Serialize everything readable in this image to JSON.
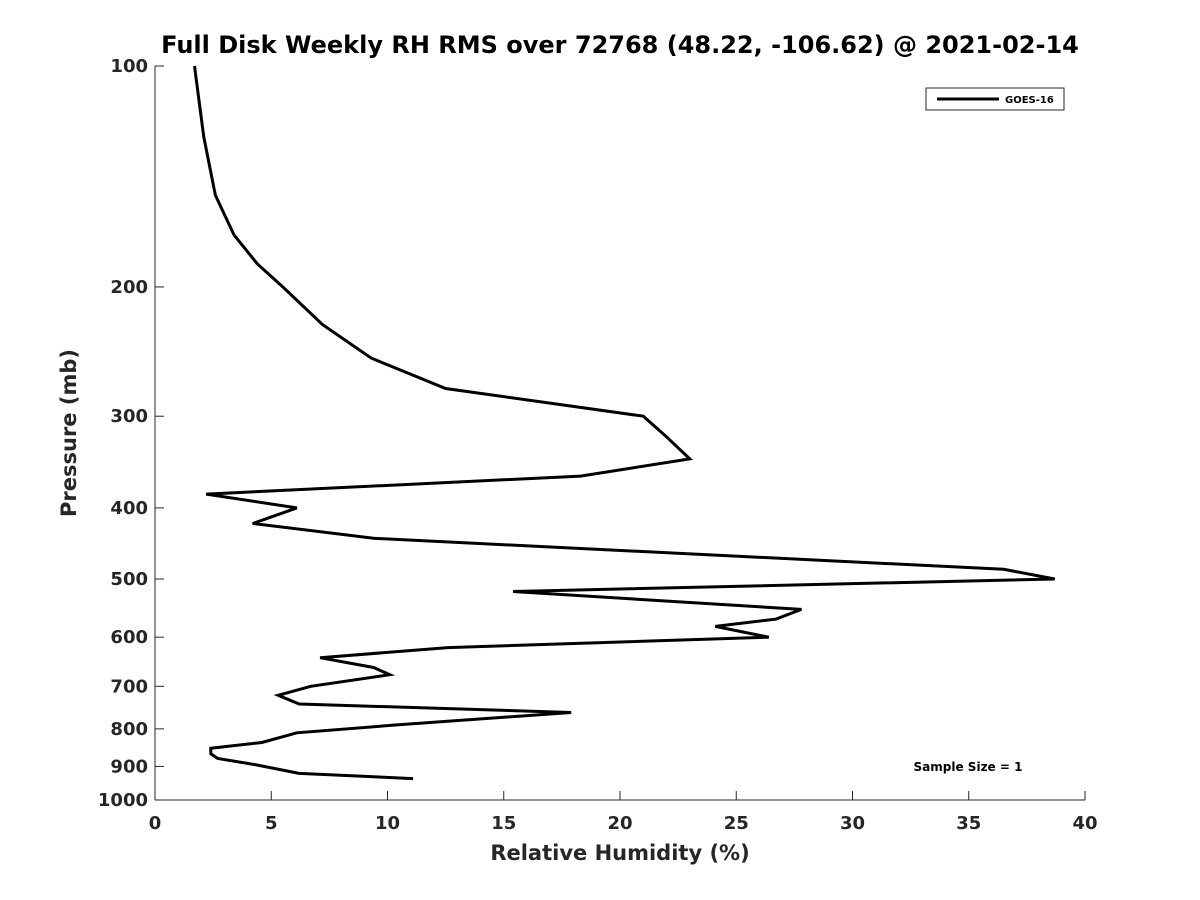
{
  "chart_data": {
    "type": "line",
    "title": "Full Disk Weekly RH RMS over 72768 (48.22, -106.62) @ 2021-02-14",
    "xlabel": "Relative Humidity (%)",
    "ylabel": "Pressure (mb)",
    "xlim": [
      0,
      40
    ],
    "ylim": [
      100,
      1000
    ],
    "y_scale": "log",
    "y_reversed": true,
    "x_ticks": [
      "0",
      "5",
      "10",
      "15",
      "20",
      "25",
      "30",
      "35",
      "40"
    ],
    "y_ticks": [
      "100",
      "200",
      "300",
      "400",
      "500",
      "600",
      "700",
      "800",
      "900",
      "1000"
    ],
    "grid": false,
    "legend_position": "top-right",
    "annotation": "Sample Size = 1",
    "series": [
      {
        "name": "GOES-16",
        "color": "#000000",
        "points": [
          [
            1.7,
            100
          ],
          [
            2.1,
            125
          ],
          [
            2.6,
            150
          ],
          [
            3.4,
            170
          ],
          [
            4.4,
            186
          ],
          [
            5.5,
            200
          ],
          [
            7.2,
            225
          ],
          [
            9.3,
            250
          ],
          [
            12.5,
            275
          ],
          [
            21.0,
            300
          ],
          [
            22.0,
            320
          ],
          [
            23.0,
            343
          ],
          [
            18.3,
            362
          ],
          [
            2.2,
            383
          ],
          [
            6.1,
            400
          ],
          [
            4.2,
            420
          ],
          [
            9.4,
            440
          ],
          [
            36.5,
            485
          ],
          [
            38.7,
            500
          ],
          [
            15.4,
            520
          ],
          [
            27.8,
            550
          ],
          [
            26.7,
            567
          ],
          [
            24.1,
            580
          ],
          [
            26.4,
            600
          ],
          [
            12.6,
            620
          ],
          [
            7.1,
            640
          ],
          [
            9.4,
            660
          ],
          [
            10.1,
            675
          ],
          [
            6.7,
            700
          ],
          [
            5.3,
            720
          ],
          [
            6.2,
            740
          ],
          [
            17.9,
            760
          ],
          [
            10.4,
            790
          ],
          [
            6.1,
            810
          ],
          [
            4.6,
            835
          ],
          [
            2.4,
            850
          ],
          [
            2.4,
            865
          ],
          [
            2.7,
            878
          ],
          [
            4.3,
            895
          ],
          [
            6.2,
            920
          ],
          [
            11.1,
            935
          ]
        ]
      }
    ]
  }
}
